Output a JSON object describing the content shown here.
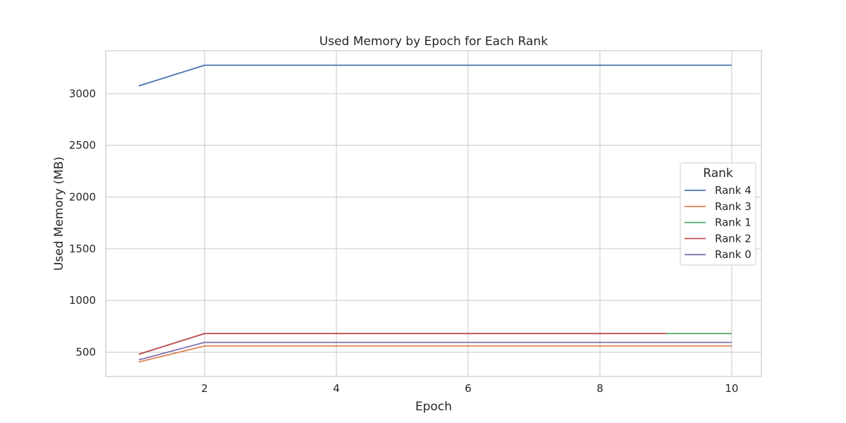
{
  "chart_data": {
    "type": "line",
    "title": "Used Memory by Epoch for Each Rank",
    "xlabel": "Epoch",
    "ylabel": "Used Memory (MB)",
    "xlim": [
      0.5,
      10.45
    ],
    "ylim": [
      265,
      3415
    ],
    "xticks": [
      2,
      4,
      6,
      8,
      10
    ],
    "yticks": [
      500,
      1000,
      1500,
      2000,
      2500,
      3000
    ],
    "grid": true,
    "legend": {
      "title": "Rank",
      "placement": "center-right"
    },
    "x": [
      1,
      2,
      3,
      4,
      5,
      6,
      7,
      8,
      9,
      10
    ],
    "series": [
      {
        "name": "Rank 4",
        "color": "#4c72b0",
        "values": [
          3075,
          3275,
          3275,
          3275,
          3275,
          3275,
          3275,
          3275,
          3275,
          3275
        ]
      },
      {
        "name": "Rank 3",
        "color": "#dd8452",
        "values": [
          405,
          560,
          560,
          560,
          560,
          560,
          560,
          560,
          560,
          560
        ]
      },
      {
        "name": "Rank 1",
        "color": "#55a868",
        "values": [
          480,
          680,
          680,
          680,
          680,
          680,
          680,
          680,
          680,
          680
        ]
      },
      {
        "name": "Rank 2",
        "color": "#c44e52",
        "values": [
          480,
          680,
          680,
          680,
          680,
          680,
          680,
          680,
          680,
          null
        ]
      },
      {
        "name": "Rank 0",
        "color": "#8172b3",
        "values": [
          425,
          595,
          595,
          595,
          595,
          595,
          595,
          595,
          595,
          595
        ]
      }
    ]
  }
}
